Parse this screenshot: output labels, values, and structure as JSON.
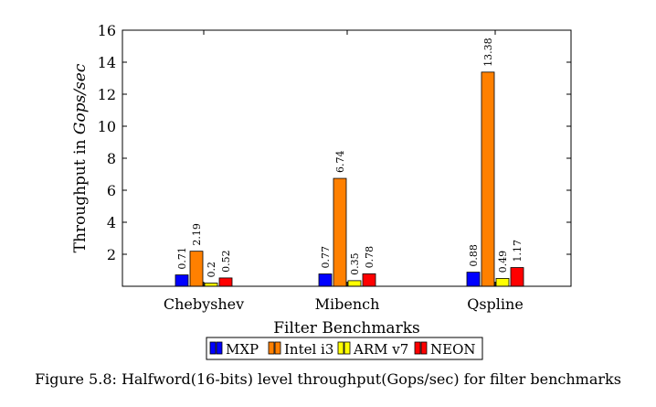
{
  "chart_data": {
    "type": "bar",
    "title": "",
    "xlabel": "Filter Benchmarks",
    "ylabel_prefix": "Throughput in ",
    "ylabel_unit": "Gops/sec",
    "ylim": [
      0,
      16
    ],
    "yticks": [
      2,
      4,
      6,
      8,
      10,
      12,
      14,
      16
    ],
    "ytick_labels": [
      "2",
      "4",
      "6",
      "8",
      "10",
      "12",
      "14",
      "16"
    ],
    "categories": [
      "Chebyshev",
      "Mibench",
      "Qspline"
    ],
    "series": [
      {
        "name": "MXP",
        "color": "#0000ff",
        "values": [
          0.71,
          0.77,
          0.88
        ],
        "labels": [
          "0.71",
          "0.77",
          "0.88"
        ]
      },
      {
        "name": "Intel i3",
        "color": "#ff8000",
        "values": [
          2.19,
          6.74,
          13.38
        ],
        "labels": [
          "2.19",
          "6.74",
          "13.38"
        ]
      },
      {
        "name": "ARM v7",
        "color": "#ffff00",
        "values": [
          0.2,
          0.35,
          0.49
        ],
        "labels": [
          "0.2",
          "0.35",
          "0.49"
        ]
      },
      {
        "name": "NEON",
        "color": "#ff0000",
        "values": [
          0.52,
          0.78,
          1.17
        ],
        "labels": [
          "0.52",
          "0.78",
          "1.17"
        ]
      }
    ],
    "grid": false,
    "legend_position": "bottom-center"
  },
  "caption": "Figure 5.8: Halfword(16-bits) level throughput(Gops/sec) for filter benchmarks"
}
